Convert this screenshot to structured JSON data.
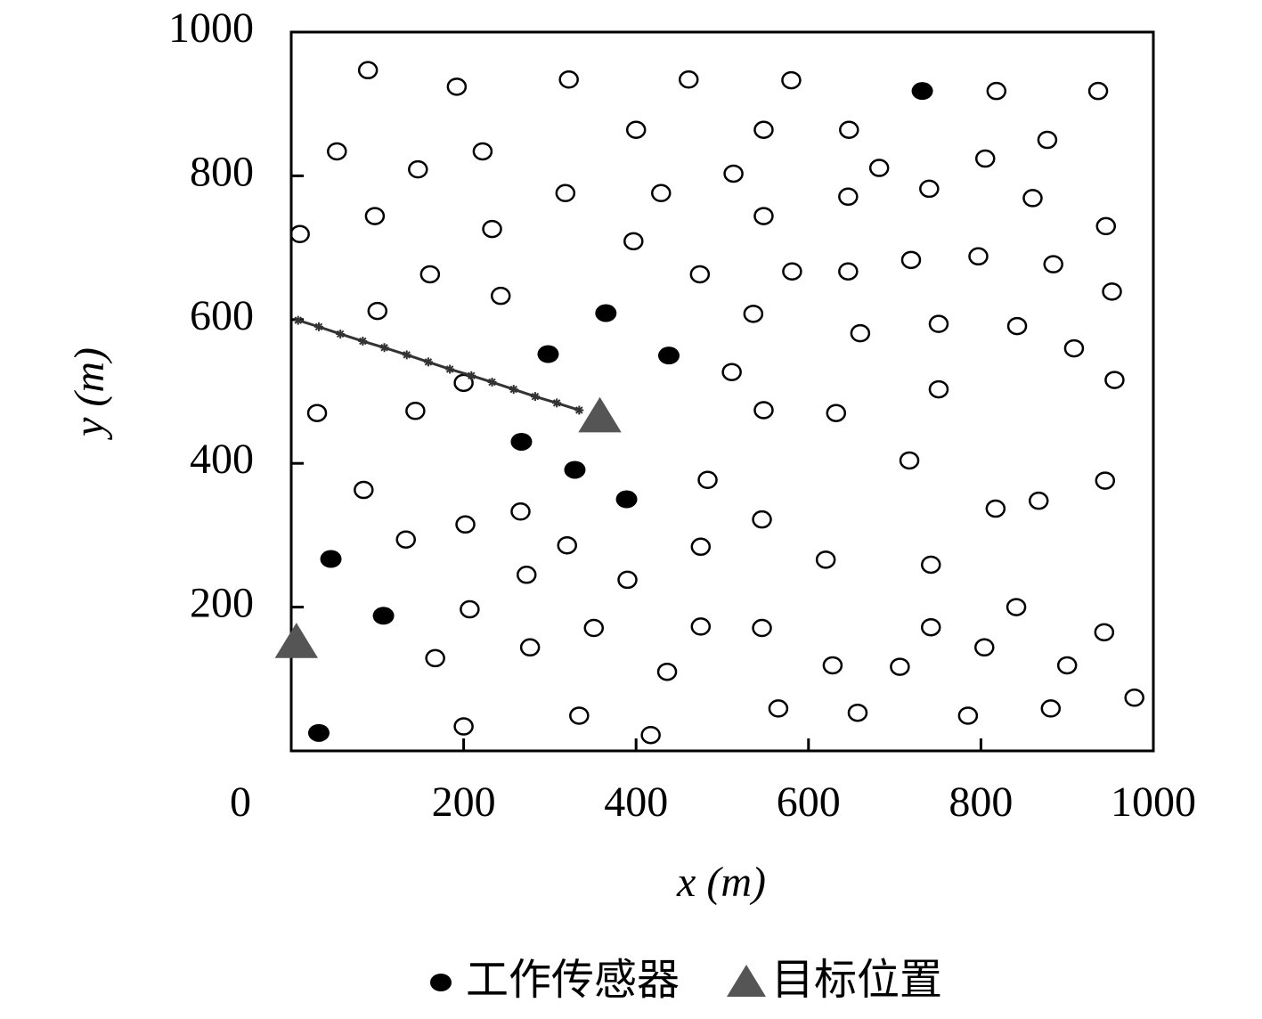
{
  "chart_data": {
    "type": "scatter",
    "xlabel": "x (m)",
    "ylabel": "y (m)",
    "xlim": [
      0,
      1000
    ],
    "ylim": [
      0,
      1000
    ],
    "xticks": [
      0,
      200,
      400,
      600,
      800,
      1000
    ],
    "yticks": [
      200,
      400,
      600,
      800,
      1000
    ],
    "series": [
      {
        "marker": "open-circle",
        "color": "#000000",
        "x": [
          89,
          192,
          322,
          461,
          580,
          818,
          936,
          400,
          548,
          647,
          53,
          222,
          147,
          682,
          877,
          805,
          513,
          318,
          429,
          646,
          740,
          860,
          97,
          548,
          10,
          233,
          397,
          945,
          161,
          474,
          581,
          646,
          719,
          797,
          884,
          243,
          952,
          100,
          536,
          660,
          751,
          842,
          908,
          511,
          200,
          751,
          955,
          30,
          144,
          548,
          632,
          717,
          84,
          483,
          944,
          867,
          817,
          266,
          202,
          133,
          320,
          546,
          475,
          620,
          742,
          273,
          390,
          207,
          841,
          351,
          475,
          546,
          742,
          943,
          167,
          277,
          628,
          706,
          804,
          900,
          436,
          978,
          565,
          881,
          657,
          785,
          334,
          200,
          417
        ],
        "values": [
          947,
          924,
          934,
          934,
          933,
          918,
          918,
          864,
          864,
          864,
          834,
          834,
          809,
          811,
          850,
          824,
          803,
          776,
          776,
          771,
          782,
          769,
          744,
          744,
          719,
          726,
          709,
          730,
          663,
          663,
          667,
          667,
          683,
          688,
          677,
          633,
          639,
          612,
          608,
          581,
          594,
          591,
          560,
          527,
          512,
          503,
          516,
          470,
          473,
          474,
          470,
          404,
          363,
          377,
          376,
          348,
          337,
          333,
          315,
          294,
          286,
          322,
          284,
          266,
          259,
          245,
          238,
          197,
          200,
          171,
          173,
          171,
          172,
          165,
          129,
          144,
          119,
          117,
          144,
          119,
          110,
          74,
          59,
          59,
          53,
          49,
          49,
          34,
          22
        ]
      },
      {
        "name": "工作传感器",
        "marker": "filled-circle",
        "color": "#000000",
        "x": [
          732,
          365,
          298,
          438,
          267,
          329,
          389,
          46,
          107,
          32
        ],
        "values": [
          918,
          609,
          552,
          550,
          430,
          391,
          350,
          267,
          188,
          25
        ]
      },
      {
        "name": "目标位置",
        "marker": "triangle",
        "color": "#555555",
        "x": [
          358,
          6
        ],
        "values": [
          465,
          151
        ]
      },
      {
        "marker": "asterisk-line",
        "color": "#333333",
        "x": [
          8,
          32,
          57,
          83,
          108,
          134,
          159,
          184,
          209,
          233,
          258,
          283,
          308,
          334
        ],
        "values": [
          599,
          590,
          580,
          570,
          561,
          551,
          541,
          531,
          522,
          513,
          503,
          493,
          484,
          474
        ]
      }
    ],
    "legend": "bottom"
  }
}
